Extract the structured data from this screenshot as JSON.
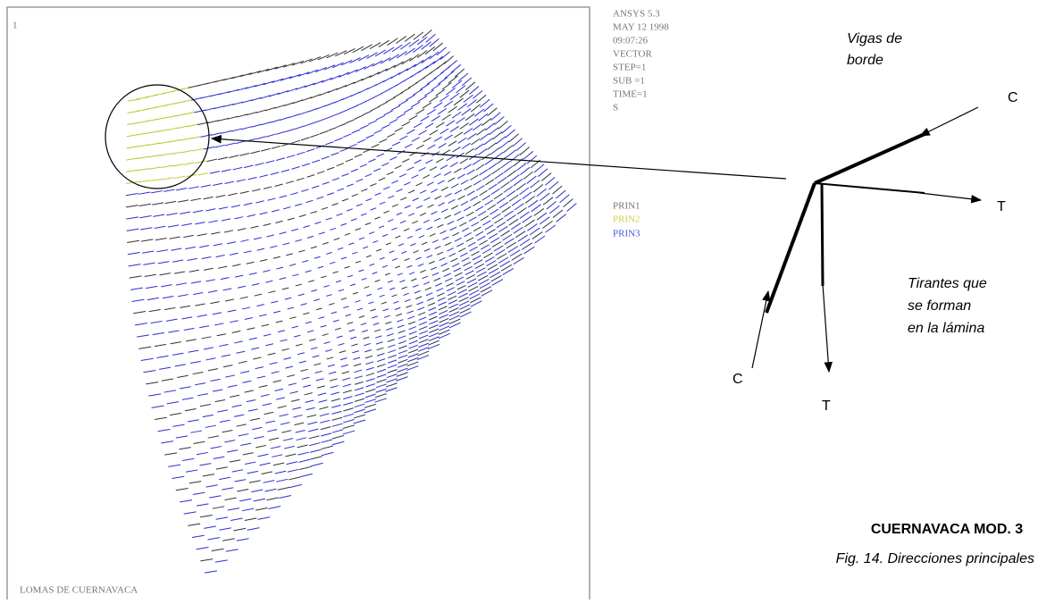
{
  "plot": {
    "window_number": "1",
    "info": [
      "ANSYS 5.3",
      "MAY 12 1998",
      "09:07:26",
      "VECTOR",
      "STEP=1",
      "SUB =1",
      "TIME=1",
      "S"
    ],
    "legend": [
      "PRIN1",
      "PRIN2",
      "PRIN3"
    ],
    "footer": "LOMAS DE CUERNAVACA"
  },
  "annotations": {
    "beams": [
      "Vigas de",
      "borde"
    ],
    "labels": [
      "C",
      "T",
      "C",
      "T"
    ],
    "ties": [
      "Tirantes que",
      "se forman",
      "en la lámina"
    ]
  },
  "caption": {
    "title": "CUERNAVACA MOD. 3",
    "text": "Fig. 14. Direcciones principales"
  }
}
